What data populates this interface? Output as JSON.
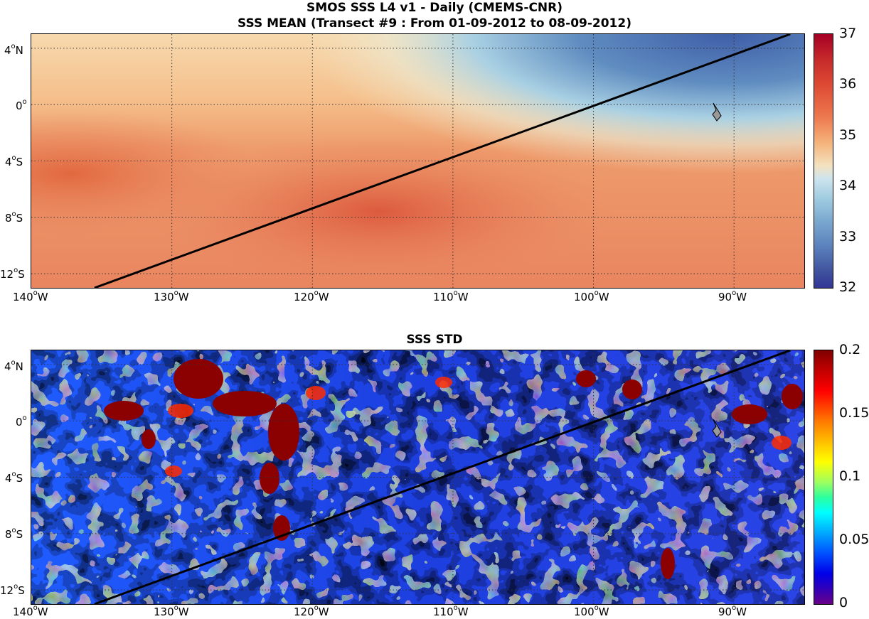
{
  "top": {
    "title_line1": "SMOS SSS L4 v1 - Daily (CMEMS-CNR)",
    "title_line2": "SSS MEAN (Transect #9 : From 01-09-2012 to 08-09-2012)",
    "colorbar_ticks": [
      "37",
      "36",
      "35",
      "34",
      "33",
      "32"
    ],
    "colormap": [
      "#b2182b",
      "#d6452e",
      "#ea7b53",
      "#f5b57a",
      "#f6e7c7",
      "#cfe6ef",
      "#8fbfdc",
      "#5f8cc0",
      "#3b4f9a"
    ]
  },
  "bottom": {
    "title": "SSS STD",
    "colorbar_ticks": [
      "0.2",
      "0.15",
      "0.1",
      "0.05",
      "0"
    ],
    "colormap": [
      "#7f0000",
      "#ff0000",
      "#ff8c00",
      "#ffff00",
      "#80ff80",
      "#00ffff",
      "#0080ff",
      "#0000ff",
      "#4b0082"
    ]
  },
  "axes": {
    "lon_ticks": [
      "140",
      "130",
      "120",
      "110",
      "100",
      "90"
    ],
    "lon_suffix": "W",
    "lat_ticks": [
      {
        "value": "4",
        "suffix": "N"
      },
      {
        "value": "0",
        "suffix": ""
      },
      {
        "value": "4",
        "suffix": "S"
      },
      {
        "value": "8",
        "suffix": "S"
      },
      {
        "value": "12",
        "suffix": "S"
      }
    ],
    "degree_symbol": "o"
  },
  "transect": {
    "start_lon": -135.5,
    "start_lat": -13,
    "end_lon": -86,
    "end_lat": 5
  }
}
